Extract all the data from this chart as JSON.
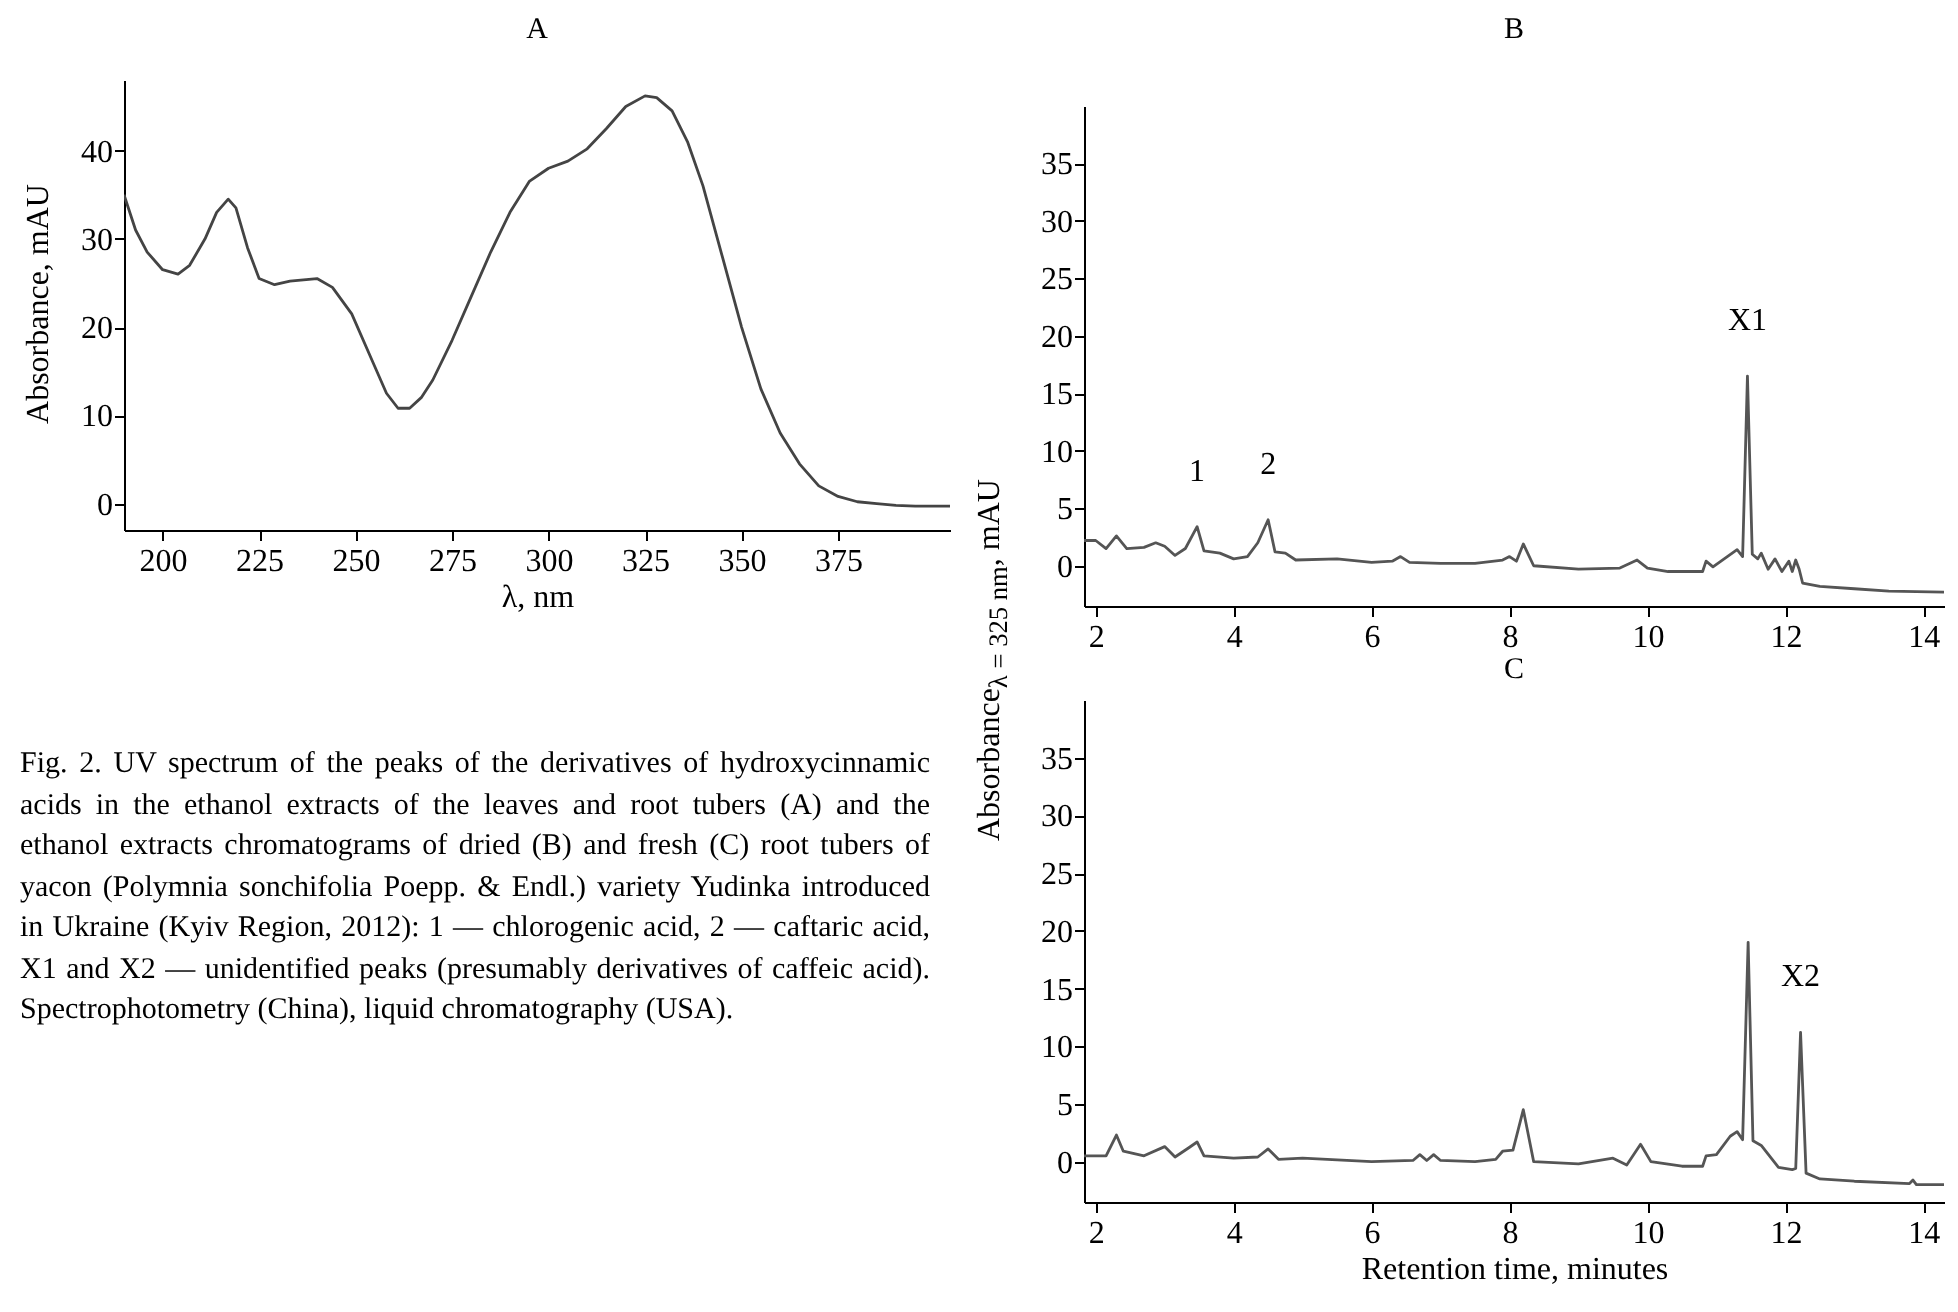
{
  "chart_data": [
    {
      "type": "line",
      "title": "A",
      "xlabel": "λ, nm",
      "ylabel": "Absorbance, mAU",
      "xlim": [
        190,
        404
      ],
      "xticks": [
        200,
        225,
        250,
        275,
        300,
        325,
        350,
        375
      ],
      "ylim": [
        -3,
        48
      ],
      "yticks": [
        0,
        10,
        20,
        30,
        40
      ],
      "x": [
        190,
        193,
        196,
        200,
        204,
        207,
        211,
        214,
        217,
        219,
        222,
        225,
        229,
        233,
        240,
        244,
        249,
        254,
        258,
        261,
        264,
        267,
        270,
        275,
        280,
        285,
        290,
        295,
        300,
        305,
        310,
        315,
        320,
        325,
        328,
        332,
        336,
        340,
        345,
        350,
        355,
        360,
        365,
        370,
        375,
        380,
        385,
        390,
        395,
        404
      ],
      "series": [
        {
          "color": "#444444",
          "values": [
            35,
            31,
            28.5,
            26.5,
            26,
            27,
            30,
            33,
            34.5,
            33.5,
            29,
            25.5,
            24.8,
            25.2,
            25.5,
            24.5,
            21.5,
            16.5,
            12.5,
            10.8,
            10.8,
            12,
            14,
            18.5,
            23.5,
            28.5,
            33,
            36.5,
            38,
            38.8,
            40.2,
            42.5,
            45,
            46.2,
            46,
            44.5,
            41,
            36,
            28,
            20,
            13,
            8,
            4.5,
            2,
            0.8,
            0.2,
            0,
            -0.2,
            -0.3,
            -0.3
          ]
        }
      ],
      "annotations": [
        "Fig. 2. UV spectrum of the peaks of the derivatives of hydroxycinnamic acids in the ethanol extracts of the leaves and root tubers (A) and the ethanol extracts chromatograms of dried (B) and fresh (C) root tubers of yacon (Polymnia sonchifolia Poepp. & Endl.) variety Yudinka introduced in Ukraine (Kyiv Region, 2012): 1 — chlorogenic acid, 2 — caftaric acid, X1 and X2 — unidentified peaks (presumably derivatives of caffeic acid). Spectrophotometry (China), liquid chromatography (USA)."
      ]
    },
    {
      "type": "line",
      "title": "B",
      "ylabel": "Absorbance$_{λ = 325 nm}$, mAU",
      "xlim": [
        1.83,
        14.3
      ],
      "xticks": [
        2,
        4,
        6,
        8,
        10,
        12,
        14
      ],
      "ylim": [
        -3.5,
        40
      ],
      "yticks": [
        0,
        5,
        10,
        15,
        20,
        25,
        30,
        35
      ],
      "x": [
        1.83,
        2.0,
        2.15,
        2.3,
        2.45,
        2.7,
        2.87,
        3.0,
        3.15,
        3.3,
        3.47,
        3.57,
        3.8,
        4.0,
        4.2,
        4.35,
        4.5,
        4.6,
        4.75,
        4.9,
        5.5,
        6.0,
        6.3,
        6.42,
        6.55,
        7.0,
        7.5,
        7.9,
        8.0,
        8.1,
        8.2,
        8.35,
        9.0,
        9.6,
        9.85,
        10.0,
        10.3,
        10.8,
        10.85,
        10.95,
        11.3,
        11.38,
        11.45,
        11.52,
        11.6,
        11.65,
        11.75,
        11.85,
        11.95,
        12.05,
        12.1,
        12.15,
        12.2,
        12.25,
        12.5,
        13.0,
        13.5,
        14.3
      ],
      "series": [
        {
          "color": "#555555",
          "values": [
            2.2,
            2.2,
            1.5,
            2.6,
            1.5,
            1.6,
            2.0,
            1.7,
            0.9,
            1.5,
            3.4,
            1.3,
            1.1,
            0.6,
            0.8,
            2.0,
            4.0,
            1.2,
            1.1,
            0.5,
            0.6,
            0.3,
            0.4,
            0.8,
            0.3,
            0.2,
            0.2,
            0.5,
            0.8,
            0.4,
            1.9,
            0,
            -0.3,
            -0.2,
            0.5,
            -0.2,
            -0.5,
            -0.5,
            0.4,
            -0.1,
            1.4,
            0.8,
            16.5,
            1.0,
            0.6,
            1.1,
            -0.3,
            0.6,
            -0.5,
            0.4,
            -0.5,
            0.5,
            -0.3,
            -1.5,
            -1.8,
            -2.0,
            -2.2,
            -2.3
          ]
        }
      ],
      "annotations": [
        {
          "text": "1",
          "x": 3.47,
          "y": 3.4
        },
        {
          "text": "2",
          "x": 4.5,
          "y": 4.0
        },
        {
          "text": "X1",
          "x": 11.45,
          "y": 16.5
        }
      ]
    },
    {
      "type": "line",
      "title": "C",
      "xlabel": "Retention time, minutes",
      "xlim": [
        1.83,
        14.3
      ],
      "xticks": [
        2,
        4,
        6,
        8,
        10,
        12,
        14
      ],
      "ylim": [
        -3.5,
        40
      ],
      "yticks": [
        0,
        5,
        10,
        15,
        20,
        25,
        30,
        35
      ],
      "x": [
        1.83,
        2.15,
        2.3,
        2.4,
        2.7,
        3.0,
        3.15,
        3.35,
        3.47,
        3.57,
        4.0,
        4.35,
        4.5,
        4.65,
        5.0,
        6.0,
        6.6,
        6.7,
        6.8,
        6.9,
        7.0,
        7.5,
        7.8,
        7.9,
        8.05,
        8.2,
        8.35,
        9.0,
        9.5,
        9.7,
        9.9,
        10.05,
        10.5,
        10.8,
        10.85,
        11.0,
        11.2,
        11.3,
        11.38,
        11.46,
        11.53,
        11.65,
        11.9,
        12.1,
        12.15,
        12.22,
        12.3,
        12.5,
        13.0,
        13.8,
        13.85,
        13.9,
        14.3
      ],
      "series": [
        {
          "color": "#555555",
          "values": [
            0.5,
            0.5,
            2.3,
            0.9,
            0.5,
            1.3,
            0.4,
            1.2,
            1.7,
            0.5,
            0.3,
            0.4,
            1.1,
            0.2,
            0.3,
            0.0,
            0.1,
            0.6,
            0.1,
            0.6,
            0.1,
            0,
            0.2,
            0.9,
            1.0,
            4.5,
            0,
            -0.2,
            0.3,
            -0.3,
            1.5,
            0,
            -0.4,
            -0.4,
            0.5,
            0.6,
            2.2,
            2.6,
            1.9,
            19.0,
            1.8,
            1.4,
            -0.5,
            -0.7,
            -0.6,
            11.2,
            -1.0,
            -1.5,
            -1.7,
            -1.9,
            -1.6,
            -2.0,
            -2.0
          ]
        }
      ],
      "annotations": [
        {
          "text": "X2",
          "x": 12.22,
          "y": 11.2
        }
      ]
    }
  ]
}
